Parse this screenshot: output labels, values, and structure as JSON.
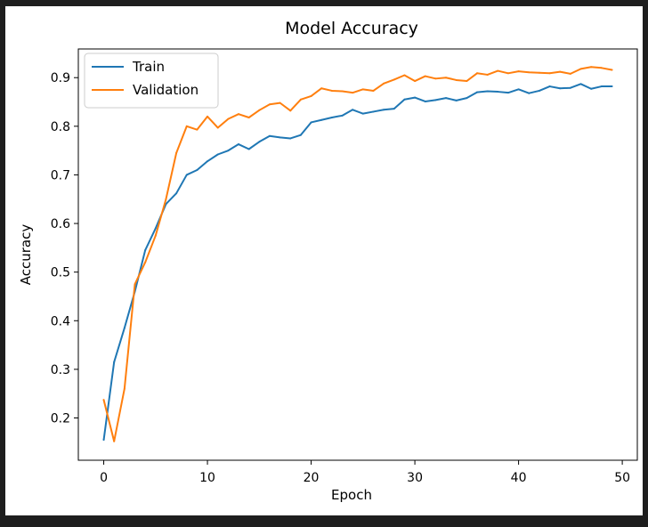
{
  "chart_data": {
    "type": "line",
    "title": "Model Accuracy",
    "xlabel": "Epoch",
    "ylabel": "Accuracy",
    "xlim": [
      -2.45,
      51.45
    ],
    "ylim": [
      0.113,
      0.959
    ],
    "xticks": [
      0,
      10,
      20,
      30,
      40,
      50
    ],
    "yticks": [
      0.2,
      0.3,
      0.4,
      0.5,
      0.6,
      0.7,
      0.8,
      0.9
    ],
    "xtick_labels": [
      "0",
      "10",
      "20",
      "30",
      "40",
      "50"
    ],
    "ytick_labels": [
      "0.2",
      "0.3",
      "0.4",
      "0.5",
      "0.6",
      "0.7",
      "0.8",
      "0.9"
    ],
    "grid": false,
    "legend_position": "upper-left",
    "x": [
      0,
      1,
      2,
      3,
      4,
      5,
      6,
      7,
      8,
      9,
      10,
      11,
      12,
      13,
      14,
      15,
      16,
      17,
      18,
      19,
      20,
      21,
      22,
      23,
      24,
      25,
      26,
      27,
      28,
      29,
      30,
      31,
      32,
      33,
      34,
      35,
      36,
      37,
      38,
      39,
      40,
      41,
      42,
      43,
      44,
      45,
      46,
      47,
      48,
      49
    ],
    "series": [
      {
        "name": "Train",
        "color": "#1f77b4",
        "values": [
          0.155,
          0.315,
          0.385,
          0.46,
          0.545,
          0.59,
          0.64,
          0.662,
          0.7,
          0.71,
          0.728,
          0.742,
          0.75,
          0.763,
          0.753,
          0.768,
          0.78,
          0.777,
          0.775,
          0.782,
          0.808,
          0.813,
          0.818,
          0.822,
          0.834,
          0.826,
          0.83,
          0.834,
          0.836,
          0.855,
          0.859,
          0.851,
          0.854,
          0.858,
          0.853,
          0.858,
          0.87,
          0.872,
          0.871,
          0.869,
          0.876,
          0.868,
          0.873,
          0.882,
          0.878,
          0.879,
          0.887,
          0.877,
          0.882,
          0.882
        ]
      },
      {
        "name": "Validation",
        "color": "#ff7f0e",
        "values": [
          0.237,
          0.152,
          0.26,
          0.475,
          0.52,
          0.575,
          0.65,
          0.745,
          0.8,
          0.793,
          0.82,
          0.797,
          0.815,
          0.825,
          0.818,
          0.833,
          0.845,
          0.848,
          0.832,
          0.855,
          0.862,
          0.878,
          0.873,
          0.872,
          0.869,
          0.876,
          0.873,
          0.888,
          0.896,
          0.905,
          0.893,
          0.903,
          0.898,
          0.9,
          0.895,
          0.893,
          0.909,
          0.906,
          0.914,
          0.909,
          0.913,
          0.911,
          0.91,
          0.909,
          0.912,
          0.908,
          0.918,
          0.922,
          0.92,
          0.916
        ]
      }
    ]
  }
}
